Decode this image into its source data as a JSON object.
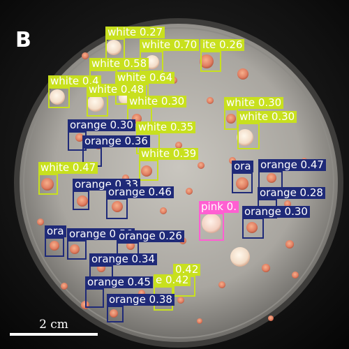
{
  "figure": {
    "panel_letter": "B",
    "scale_bar_label": "2 cm"
  },
  "colors": {
    "white": "#c8e01e",
    "orange": "#1f2a78",
    "pink": "#ff5fd2"
  },
  "detections": [
    {
      "label": "white 0.27"
    },
    {
      "label": "white 0.70"
    },
    {
      "label": "ite 0.26"
    },
    {
      "label": "white 0.58"
    },
    {
      "label": "white 0.4"
    },
    {
      "label": "white 0.64"
    },
    {
      "label": "white 0.48"
    },
    {
      "label": "white 0.30"
    },
    {
      "label": "white 0.30"
    },
    {
      "label": "white 0.30"
    },
    {
      "label": "orange 0.30"
    },
    {
      "label": "white 0.35"
    },
    {
      "label": "orange 0.36"
    },
    {
      "label": "white 0.39"
    },
    {
      "label": "white 0.47"
    },
    {
      "label": "orange 0.33"
    },
    {
      "label": "orange 0.46"
    },
    {
      "label": "ora"
    },
    {
      "label": "orange 0.47"
    },
    {
      "label": "orange 0.28"
    },
    {
      "label": "pink 0."
    },
    {
      "label": "orange 0.30"
    },
    {
      "label": "ora"
    },
    {
      "label": "orange 0.56"
    },
    {
      "label": "orange 0.26"
    },
    {
      "label": "orange 0.34"
    },
    {
      "label": "0.42"
    },
    {
      "label": "orange 0.45"
    },
    {
      "label": "e 0.42"
    },
    {
      "label": "orange 0.38"
    }
  ]
}
